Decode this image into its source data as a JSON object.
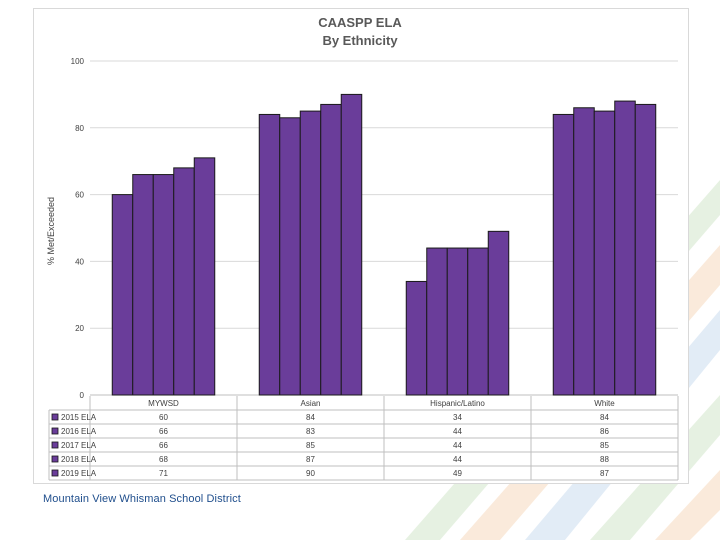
{
  "colors": {
    "bar_fill": "#6a3d9a",
    "bar_stroke": "#1a1a1a",
    "title": "#595959",
    "axis_text": "#404040",
    "gridline": "#d9d9d9",
    "footer": "#1f4e8c"
  },
  "footer": {
    "text": "Mountain View Whisman School District"
  },
  "chart_data": {
    "type": "bar",
    "title": "CAASPP ELA",
    "subtitle": "By Ethnicity",
    "ylabel": "% Met/Exceeded",
    "xlabel": "",
    "ylim": [
      0,
      100
    ],
    "yticks": [
      0,
      20,
      40,
      60,
      80,
      100
    ],
    "grid": true,
    "legend": "table-below",
    "categories": [
      "MYWSD",
      "Asian",
      "Hispanic/Latino",
      "White"
    ],
    "series": [
      {
        "name": "2015 ELA",
        "values": [
          60,
          84,
          34,
          84
        ]
      },
      {
        "name": "2016 ELA",
        "values": [
          66,
          83,
          44,
          86
        ]
      },
      {
        "name": "2017 ELA",
        "values": [
          66,
          85,
          44,
          85
        ]
      },
      {
        "name": "2018 ELA",
        "values": [
          68,
          87,
          44,
          88
        ]
      },
      {
        "name": "2019 ELA",
        "values": [
          71,
          90,
          49,
          87
        ]
      }
    ]
  }
}
